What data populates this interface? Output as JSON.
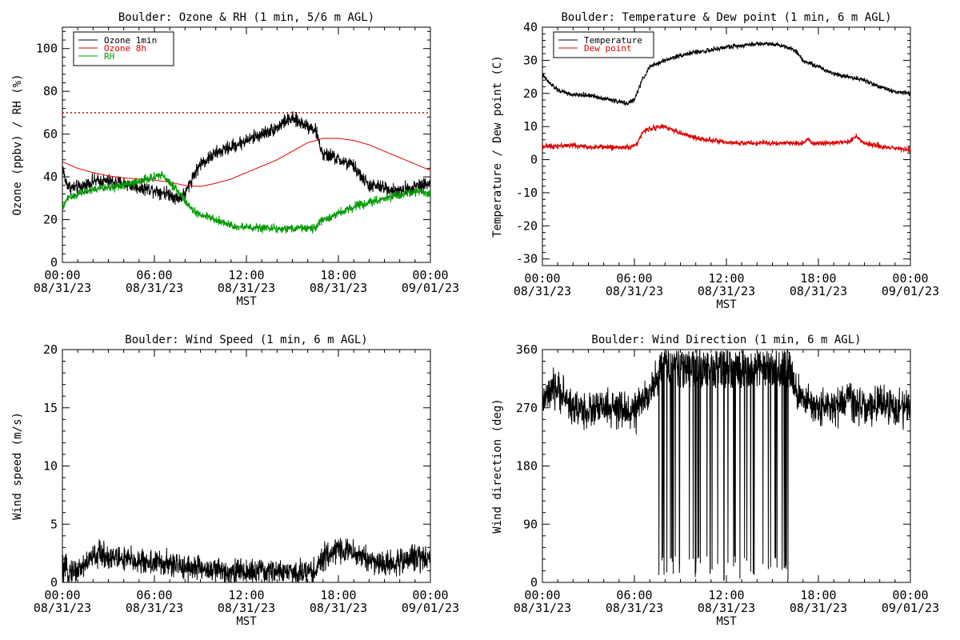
{
  "chart_data": [
    {
      "type": "line",
      "title": "Boulder: Ozone & RH (1 min, 5/6 m AGL)",
      "ylabel": "Ozone (ppbv) / RH (%)",
      "xlabel": "MST",
      "ylim": [
        0,
        110
      ],
      "yticks": [
        0,
        20,
        40,
        60,
        80,
        100
      ],
      "x_ticks_hours": [
        0,
        6,
        12,
        18,
        24
      ],
      "x_tick_times": [
        "00:00",
        "06:00",
        "12:00",
        "18:00",
        "00:00"
      ],
      "x_tick_dates": [
        "08/31/23",
        "08/31/23",
        "08/31/23",
        "08/31/23",
        "09/01/23"
      ],
      "x_units": "hours after 08/31/23 00:00 MST",
      "legend_position": "top-left",
      "reference_line": {
        "y": 70,
        "color": "#dd0000",
        "style": "dotted"
      },
      "series": [
        {
          "name": "Ozone 1min",
          "color": "#000000",
          "noise": 1.6,
          "x": [
            0,
            0.2,
            0.5,
            1,
            1.5,
            2,
            3,
            4,
            5,
            6,
            7,
            7.5,
            8,
            8.5,
            9,
            10,
            11,
            12,
            13,
            14,
            14.5,
            15,
            16,
            16.5,
            17,
            17.5,
            18,
            19,
            19.5,
            20,
            21,
            22,
            23,
            24
          ],
          "y": [
            45,
            38,
            35,
            35,
            36,
            38,
            38,
            37,
            35,
            34,
            32,
            30,
            32,
            40,
            46,
            51,
            54,
            57,
            60,
            63,
            66,
            67,
            64,
            62,
            50,
            50,
            48,
            45,
            40,
            36,
            35,
            33,
            36,
            37
          ]
        },
        {
          "name": "Ozone 8h",
          "color": "#dd0000",
          "noise": 0,
          "x": [
            0,
            1,
            2,
            3,
            4,
            5,
            6,
            7,
            8,
            9,
            10,
            11,
            12,
            13,
            14,
            15,
            16,
            17,
            18,
            19,
            20,
            21,
            22,
            23,
            24
          ],
          "y": [
            47,
            44,
            42,
            40.5,
            39.5,
            39,
            38.5,
            37.5,
            36,
            35.5,
            37,
            39,
            42,
            45,
            48,
            52,
            56,
            58,
            58,
            57,
            55,
            52,
            49,
            46,
            43
          ]
        },
        {
          "name": "RH",
          "color": "#009900",
          "noise": 1.0,
          "x": [
            0,
            0.3,
            1,
            2,
            3,
            4,
            5,
            6,
            6.5,
            7,
            7.5,
            8,
            8.5,
            9,
            10,
            11,
            12,
            13,
            14,
            15,
            16,
            16.5,
            17,
            18,
            19,
            20,
            21,
            22,
            23,
            24
          ],
          "y": [
            25,
            30,
            32,
            34,
            35,
            36,
            38,
            40,
            41,
            37,
            34,
            29,
            24,
            22,
            20,
            17,
            16.5,
            16,
            16,
            16,
            16,
            16,
            20,
            23,
            26,
            28,
            30,
            32,
            33,
            32
          ]
        }
      ]
    },
    {
      "type": "line",
      "title": "Boulder: Temperature & Dew point (1 min, 6 m AGL)",
      "ylabel": "Temperature / Dew point (C)",
      "xlabel": "MST",
      "ylim": [
        -32,
        40
      ],
      "yticks": [
        -30,
        -20,
        -10,
        0,
        10,
        20,
        30,
        40
      ],
      "x_ticks_hours": [
        0,
        6,
        12,
        18,
        24
      ],
      "x_tick_times": [
        "00:00",
        "06:00",
        "12:00",
        "18:00",
        "00:00"
      ],
      "x_tick_dates": [
        "08/31/23",
        "08/31/23",
        "08/31/23",
        "08/31/23",
        "09/01/23"
      ],
      "x_units": "hours after 08/31/23 00:00 MST",
      "legend_position": "top-left",
      "series": [
        {
          "name": "Temperature",
          "color": "#000000",
          "noise": 0.35,
          "x": [
            0,
            0.5,
            1,
            2,
            3,
            4,
            5,
            5.5,
            6,
            6.5,
            7,
            8,
            9,
            10,
            11,
            12,
            13,
            14,
            15,
            16,
            16.5,
            17,
            18,
            19,
            20,
            21,
            22,
            23,
            24
          ],
          "y": [
            25.5,
            23,
            21,
            19.5,
            19.5,
            18.5,
            17.5,
            17,
            18,
            24,
            28,
            30,
            31.5,
            32.5,
            33,
            34,
            34.5,
            35,
            35,
            34,
            33,
            30,
            28,
            26,
            25,
            24,
            22,
            20.5,
            20
          ]
        },
        {
          "name": "Dew point",
          "color": "#dd0000",
          "noise": 0.4,
          "x": [
            0,
            1,
            2,
            3,
            4,
            5,
            5.8,
            6.2,
            6.5,
            7,
            8,
            9,
            10,
            11,
            12,
            13,
            14,
            15,
            16,
            17,
            17.3,
            17.6,
            18,
            19,
            20,
            20.5,
            21,
            22,
            23,
            24
          ],
          "y": [
            4,
            4.2,
            4.3,
            3.8,
            3.8,
            3.7,
            3.8,
            5,
            8,
            9.5,
            10,
            8,
            6.5,
            6,
            5,
            5,
            5,
            5,
            5,
            5,
            6.5,
            5,
            5,
            5,
            5.5,
            7,
            5,
            4,
            3.5,
            3
          ]
        }
      ]
    },
    {
      "type": "line",
      "title": "Boulder: Wind Speed (1 min, 6 m AGL)",
      "ylabel": "Wind speed (m/s)",
      "xlabel": "MST",
      "ylim": [
        0,
        20
      ],
      "yticks": [
        0,
        5,
        10,
        15,
        20
      ],
      "x_ticks_hours": [
        0,
        6,
        12,
        18,
        24
      ],
      "x_tick_times": [
        "00:00",
        "06:00",
        "12:00",
        "18:00",
        "00:00"
      ],
      "x_tick_dates": [
        "08/31/23",
        "08/31/23",
        "08/31/23",
        "08/31/23",
        "09/01/23"
      ],
      "x_units": "hours after 08/31/23 00:00 MST",
      "series": [
        {
          "name": "",
          "color": "#000000",
          "noise": 0.55,
          "x": [
            0,
            1,
            2,
            2.5,
            3,
            4,
            5,
            6,
            7,
            8,
            9,
            10,
            11,
            12,
            13,
            14,
            15,
            16,
            16.5,
            17,
            17.5,
            18,
            19,
            20,
            21,
            22,
            23,
            24
          ],
          "y": [
            1,
            1,
            2.2,
            2.5,
            2.2,
            2.0,
            1.8,
            1.7,
            1.5,
            1.4,
            1.2,
            1.0,
            1.0,
            0.9,
            0.9,
            0.9,
            0.8,
            0.9,
            1.0,
            2.0,
            2.5,
            3.0,
            2.5,
            2.0,
            1.5,
            1.8,
            2.2,
            2.2
          ]
        }
      ]
    },
    {
      "type": "line",
      "title": "Boulder: Wind Direction (1 min, 6 m AGL)",
      "ylabel": "Wind direction (deg)",
      "xlabel": "MST",
      "ylim": [
        0,
        360
      ],
      "yticks": [
        0,
        90,
        180,
        270,
        360
      ],
      "x_ticks_hours": [
        0,
        6,
        12,
        18,
        24
      ],
      "x_tick_times": [
        "00:00",
        "06:00",
        "12:00",
        "18:00",
        "00:00"
      ],
      "x_tick_dates": [
        "08/31/23",
        "08/31/23",
        "08/31/23",
        "08/31/23",
        "09/01/23"
      ],
      "x_units": "hours after 08/31/23 00:00 MST",
      "series": [
        {
          "name": "",
          "color": "#000000",
          "noise": 14,
          "x": [
            0,
            1,
            2,
            3,
            4,
            5,
            6,
            6.5,
            7,
            7.5,
            16.5,
            17,
            18,
            19,
            20,
            21,
            22,
            23,
            24
          ],
          "y": [
            280,
            300,
            270,
            265,
            270,
            265,
            265,
            275,
            300,
            310,
            300,
            280,
            270,
            275,
            280,
            270,
            275,
            270,
            270
          ],
          "wrap_window": [
            7.6,
            16.3
          ]
        }
      ]
    }
  ]
}
